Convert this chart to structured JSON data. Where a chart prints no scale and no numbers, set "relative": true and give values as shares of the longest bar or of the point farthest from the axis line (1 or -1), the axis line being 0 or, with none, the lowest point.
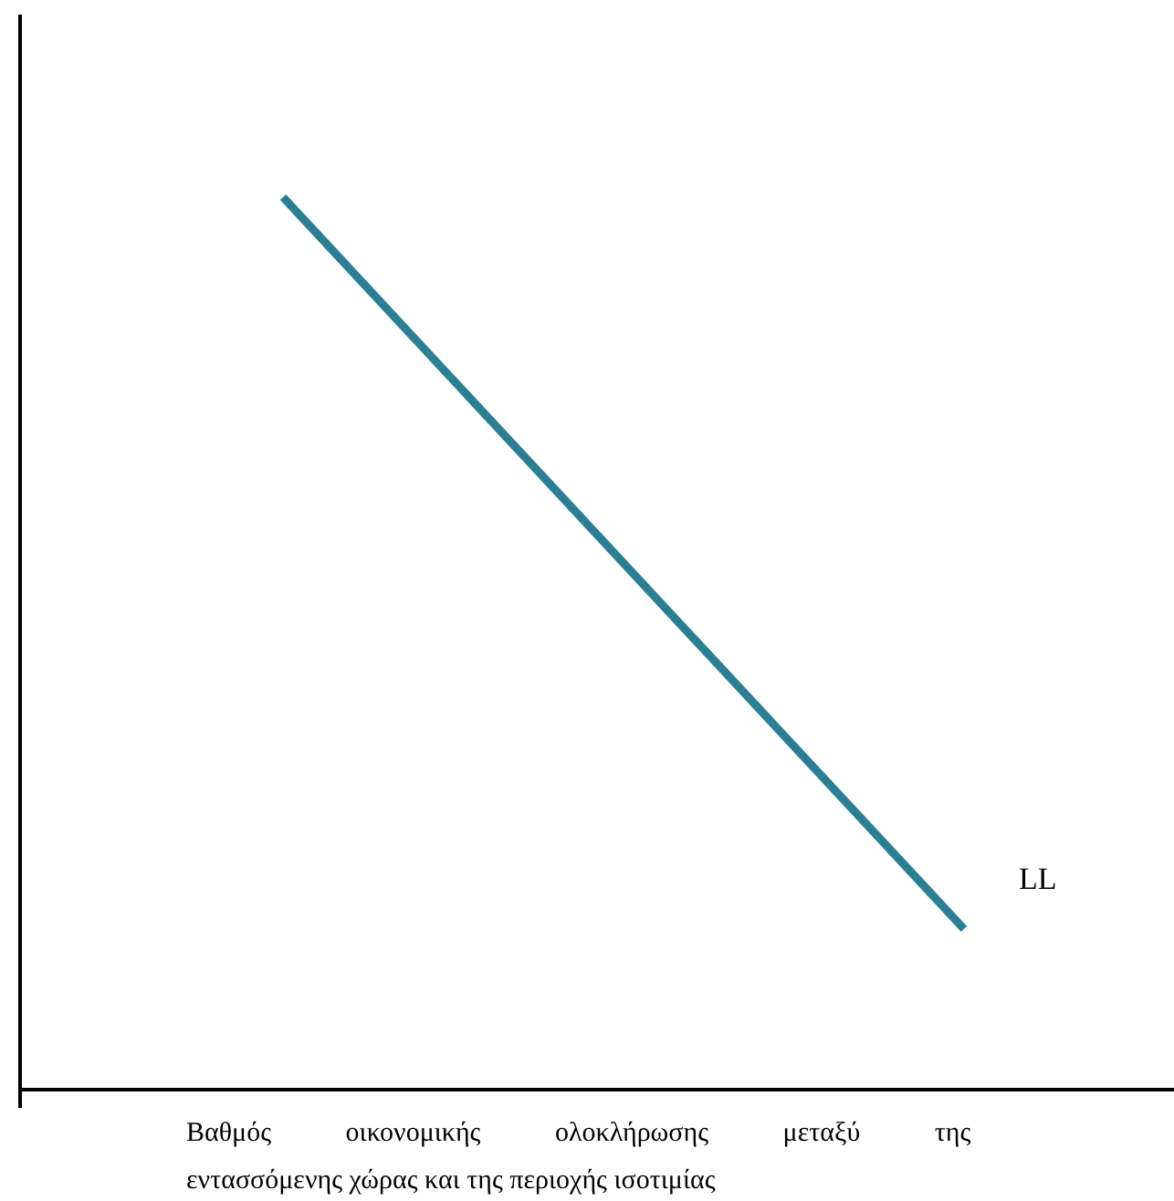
{
  "chart_data": {
    "type": "line",
    "relative": true,
    "xlabel": "Βαθμός οικονομικής ολοκλήρωσης μεταξύ της εντασσόμενης χώρας και της περιοχής ισοτιμίας",
    "categories": [
      null,
      null
    ],
    "series": [
      {
        "name": "LL",
        "color": "#2b7f95",
        "values": [
          1,
          0.18
        ]
      }
    ]
  }
}
